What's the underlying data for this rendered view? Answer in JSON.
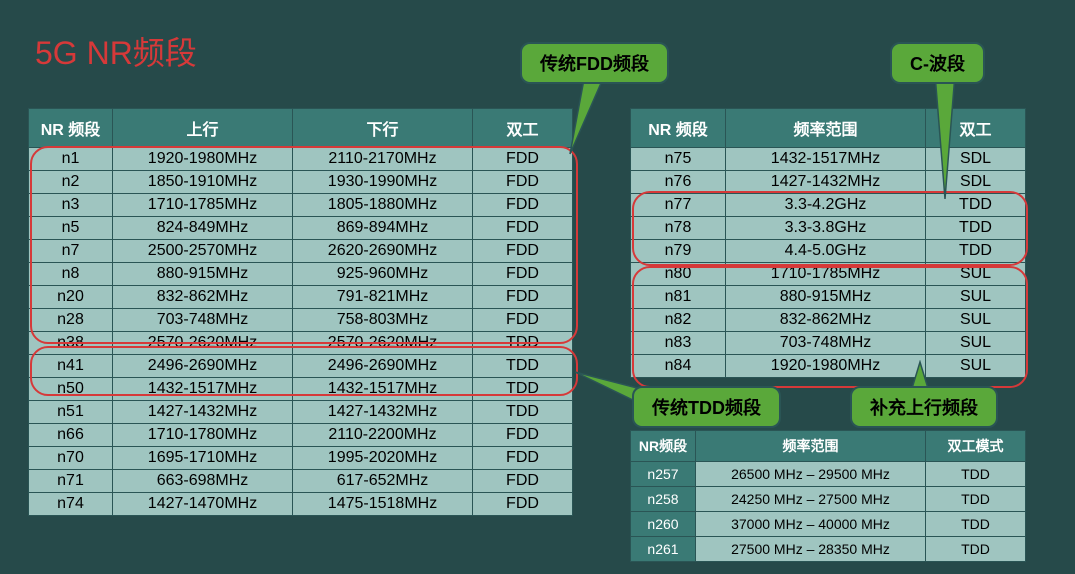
{
  "title": "5G NR频段",
  "colors": {
    "background": "#264a4a",
    "header_bg": "#3a7a75",
    "cell_bg": "#9fc5c0",
    "border": "#2a5555",
    "title_color": "#d63939",
    "highlight_border": "#d63939",
    "badge_bg": "#5aa83a",
    "badge_green": "#5aa83a"
  },
  "badges": {
    "fdd": "传统FDD频段",
    "cband": "C-波段",
    "tdd": "传统TDD频段",
    "sul": "补充上行频段"
  },
  "table1": {
    "headers": [
      "NR 频段",
      "上行",
      "下行",
      "双工"
    ],
    "rows": [
      [
        "n1",
        "1920-1980MHz",
        "2110-2170MHz",
        "FDD"
      ],
      [
        "n2",
        "1850-1910MHz",
        "1930-1990MHz",
        "FDD"
      ],
      [
        "n3",
        "1710-1785MHz",
        "1805-1880MHz",
        "FDD"
      ],
      [
        "n5",
        "824-849MHz",
        "869-894MHz",
        "FDD"
      ],
      [
        "n7",
        "2500-2570MHz",
        "2620-2690MHz",
        "FDD"
      ],
      [
        "n8",
        "880-915MHz",
        "925-960MHz",
        "FDD"
      ],
      [
        "n20",
        "832-862MHz",
        "791-821MHz",
        "FDD"
      ],
      [
        "n28",
        "703-748MHz",
        "758-803MHz",
        "FDD"
      ],
      [
        "n38",
        "2570-2620MHz",
        "2570-2620MHz",
        "TDD"
      ],
      [
        "n41",
        "2496-2690MHz",
        "2496-2690MHz",
        "TDD"
      ],
      [
        "n50",
        "1432-1517MHz",
        "1432-1517MHz",
        "TDD"
      ],
      [
        "n51",
        "1427-1432MHz",
        "1427-1432MHz",
        "TDD"
      ],
      [
        "n66",
        "1710-1780MHz",
        "2110-2200MHz",
        "FDD"
      ],
      [
        "n70",
        "1695-1710MHz",
        "1995-2020MHz",
        "FDD"
      ],
      [
        "n71",
        "663-698MHz",
        "617-652MHz",
        "FDD"
      ],
      [
        "n74",
        "1427-1470MHz",
        "1475-1518MHz",
        "FDD"
      ]
    ]
  },
  "table2": {
    "headers": [
      "NR 频段",
      "频率范围",
      "双工"
    ],
    "rows": [
      [
        "n75",
        "1432-1517MHz",
        "SDL"
      ],
      [
        "n76",
        "1427-1432MHz",
        "SDL"
      ],
      [
        "n77",
        "3.3-4.2GHz",
        "TDD"
      ],
      [
        "n78",
        "3.3-3.8GHz",
        "TDD"
      ],
      [
        "n79",
        "4.4-5.0GHz",
        "TDD"
      ],
      [
        "n80",
        "1710-1785MHz",
        "SUL"
      ],
      [
        "n81",
        "880-915MHz",
        "SUL"
      ],
      [
        "n82",
        "832-862MHz",
        "SUL"
      ],
      [
        "n83",
        "703-748MHz",
        "SUL"
      ],
      [
        "n84",
        "1920-1980MHz",
        "SUL"
      ]
    ]
  },
  "table3": {
    "headers": [
      "NR频段",
      "频率范围",
      "双工模式"
    ],
    "rows": [
      [
        "n257",
        "26500 MHz – 29500 MHz",
        "TDD"
      ],
      [
        "n258",
        "24250 MHz – 27500 MHz",
        "TDD"
      ],
      [
        "n260",
        "37000 MHz – 40000 MHz",
        "TDD"
      ],
      [
        "n261",
        "27500 MHz – 28350 MHz",
        "TDD"
      ]
    ]
  }
}
